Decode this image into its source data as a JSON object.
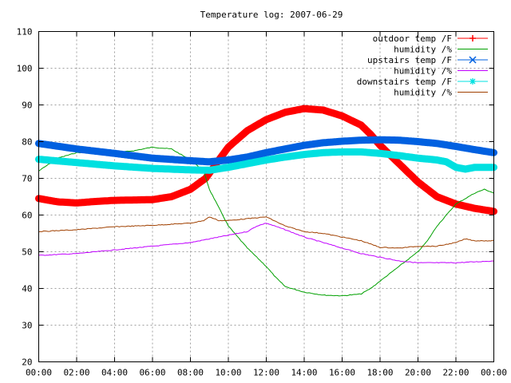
{
  "chart_data": {
    "type": "line",
    "title": "Temperature log: 2007-06-29",
    "xlabel": "",
    "ylabel": "",
    "x_ticks": [
      "00:00",
      "02:00",
      "04:00",
      "06:00",
      "08:00",
      "10:00",
      "12:00",
      "14:00",
      "16:00",
      "18:00",
      "20:00",
      "22:00",
      "00:00"
    ],
    "xlim": [
      0,
      24
    ],
    "ylim": [
      20,
      110
    ],
    "y_ticks": [
      "20",
      "30",
      "40",
      "50",
      "60",
      "70",
      "80",
      "90",
      "100",
      "110"
    ],
    "grid": true,
    "legend_position": "top-right",
    "series": [
      {
        "name": "outdoor temp /F",
        "color": "#ff0000",
        "style": "thick",
        "points": [
          [
            0,
            64.5
          ],
          [
            1,
            63.6
          ],
          [
            2,
            63.3
          ],
          [
            3,
            63.7
          ],
          [
            4,
            64
          ],
          [
            5,
            64.1
          ],
          [
            6,
            64.2
          ],
          [
            7,
            65
          ],
          [
            8,
            67
          ],
          [
            8.8,
            70
          ],
          [
            9.5,
            75
          ],
          [
            10,
            78.5
          ],
          [
            11,
            83
          ],
          [
            12,
            86
          ],
          [
            13,
            88
          ],
          [
            14,
            89
          ],
          [
            15,
            88.6
          ],
          [
            16,
            87
          ],
          [
            17,
            84.5
          ],
          [
            17.5,
            82
          ],
          [
            18,
            79
          ],
          [
            19,
            74
          ],
          [
            20,
            69
          ],
          [
            21,
            65
          ],
          [
            22,
            63
          ],
          [
            23,
            61.8
          ],
          [
            24,
            61
          ]
        ]
      },
      {
        "name": "humidity /%",
        "color": "#00a000",
        "style": "thin",
        "points": [
          [
            0,
            72
          ],
          [
            1,
            75.5
          ],
          [
            2,
            77
          ],
          [
            3,
            77
          ],
          [
            4,
            77
          ],
          [
            5,
            77.5
          ],
          [
            5.5,
            78
          ],
          [
            6,
            78.5
          ],
          [
            7,
            78
          ],
          [
            8,
            75
          ],
          [
            8.7,
            72
          ],
          [
            9,
            67
          ],
          [
            9.5,
            62
          ],
          [
            10,
            57
          ],
          [
            11,
            51
          ],
          [
            12,
            46
          ],
          [
            12.5,
            43
          ],
          [
            13,
            40.5
          ],
          [
            14,
            39
          ],
          [
            15,
            38.2
          ],
          [
            16,
            38
          ],
          [
            17,
            38.5
          ],
          [
            17.5,
            40
          ],
          [
            18,
            42
          ],
          [
            19,
            46
          ],
          [
            20,
            50
          ],
          [
            20.5,
            53
          ],
          [
            21,
            57
          ],
          [
            22,
            63
          ],
          [
            23,
            66
          ],
          [
            23.5,
            67
          ],
          [
            24,
            66
          ]
        ]
      },
      {
        "name": "upstairs temp /F",
        "color": "#0060e0",
        "style": "thick",
        "points": [
          [
            0,
            79.5
          ],
          [
            2,
            78
          ],
          [
            4,
            76.8
          ],
          [
            6,
            75.5
          ],
          [
            8,
            74.8
          ],
          [
            9,
            74.5
          ],
          [
            10,
            75
          ],
          [
            11,
            75.8
          ],
          [
            12,
            77
          ],
          [
            13,
            78
          ],
          [
            14,
            79
          ],
          [
            15,
            79.7
          ],
          [
            16,
            80.1
          ],
          [
            17,
            80.4
          ],
          [
            18,
            80.5
          ],
          [
            19,
            80.4
          ],
          [
            20,
            80
          ],
          [
            21,
            79.5
          ],
          [
            22,
            78.7
          ],
          [
            23,
            77.8
          ],
          [
            24,
            77
          ]
        ]
      },
      {
        "name": "humidity /%",
        "color": "#c000ff",
        "style": "thin",
        "points": [
          [
            0,
            49
          ],
          [
            2,
            49.5
          ],
          [
            4,
            50.5
          ],
          [
            6,
            51.5
          ],
          [
            8,
            52.5
          ],
          [
            9,
            53.5
          ],
          [
            10,
            54.5
          ],
          [
            11,
            55.5
          ],
          [
            11.5,
            57
          ],
          [
            12,
            57.8
          ],
          [
            13,
            56
          ],
          [
            14,
            54
          ],
          [
            15,
            52.5
          ],
          [
            16,
            51
          ],
          [
            17,
            49.5
          ],
          [
            18,
            48.5
          ],
          [
            19,
            47.5
          ],
          [
            20,
            47
          ],
          [
            22,
            47
          ],
          [
            24,
            47.5
          ]
        ]
      },
      {
        "name": "downstairs temp /F",
        "color": "#00e0e0",
        "style": "thick",
        "points": [
          [
            0,
            75.2
          ],
          [
            2,
            74.3
          ],
          [
            4,
            73.4
          ],
          [
            6,
            72.7
          ],
          [
            8,
            72.3
          ],
          [
            9,
            72.2
          ],
          [
            10,
            73
          ],
          [
            11,
            74
          ],
          [
            12,
            75
          ],
          [
            13,
            75.8
          ],
          [
            14,
            76.5
          ],
          [
            15,
            77
          ],
          [
            16,
            77.2
          ],
          [
            17,
            77.2
          ],
          [
            18,
            76.8
          ],
          [
            19,
            76.2
          ],
          [
            20,
            75.5
          ],
          [
            21,
            75
          ],
          [
            21.5,
            74.5
          ],
          [
            22,
            73
          ],
          [
            22.5,
            72.5
          ],
          [
            23,
            73
          ],
          [
            24,
            73
          ]
        ]
      },
      {
        "name": "humidity /%",
        "color": "#a04000",
        "style": "thin",
        "points": [
          [
            0,
            55.5
          ],
          [
            2,
            56
          ],
          [
            4,
            56.8
          ],
          [
            6,
            57.2
          ],
          [
            8,
            57.8
          ],
          [
            8.7,
            58.5
          ],
          [
            9,
            59.5
          ],
          [
            9.5,
            58.5
          ],
          [
            10,
            58.5
          ],
          [
            11,
            59
          ],
          [
            12,
            59.5
          ],
          [
            13,
            57
          ],
          [
            14,
            55.5
          ],
          [
            15,
            55
          ],
          [
            16,
            54
          ],
          [
            17,
            53
          ],
          [
            18,
            51.2
          ],
          [
            19,
            51
          ],
          [
            20,
            51.5
          ],
          [
            21,
            51.5
          ],
          [
            22,
            52.5
          ],
          [
            22.5,
            53.5
          ],
          [
            23,
            53
          ],
          [
            24,
            53
          ]
        ]
      }
    ]
  }
}
